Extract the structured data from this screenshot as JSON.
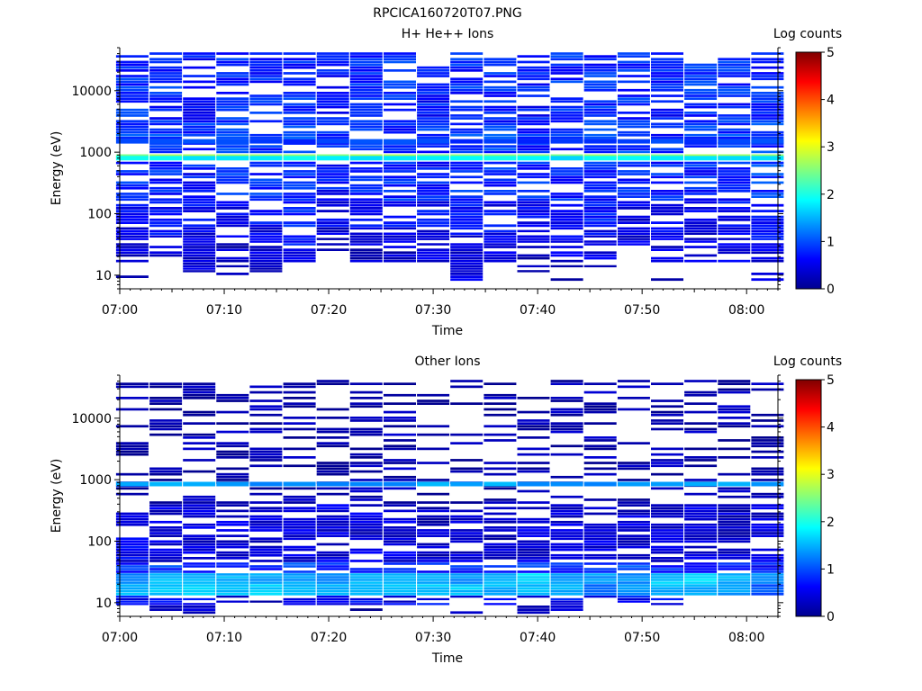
{
  "figure_title": "RPCICA160720T07.PNG",
  "palette": [
    "#00008f",
    "#0000ff",
    "#0080ff",
    "#00ffff",
    "#80ff80",
    "#ffff00",
    "#ff8000",
    "#ff0000",
    "#800000"
  ],
  "chart_data": [
    {
      "type": "heatmap",
      "title": "H+ He++ Ions",
      "xlabel": "Time",
      "ylabel": "Energy (eV)",
      "xticks": [
        "07:00",
        "07:10",
        "07:20",
        "07:30",
        "07:40",
        "07:50",
        "08:00"
      ],
      "xlim_minutes": [
        0,
        63
      ],
      "ylog": true,
      "ylim": [
        6,
        50000
      ],
      "yticks": [
        {
          "v": 10,
          "label": "10"
        },
        {
          "v": 100,
          "label": "100"
        },
        {
          "v": 1000,
          "label": "1000"
        },
        {
          "v": 10000,
          "label": "10000"
        }
      ],
      "colorbar": {
        "label": "Log counts",
        "ticks": [
          "0",
          "1",
          "2",
          "3",
          "4",
          "5"
        ],
        "range": [
          0,
          5
        ]
      },
      "time_bins_minutes": [
        1.2,
        4.4,
        7.6,
        10.8,
        14.0,
        17.2,
        20.4,
        23.6,
        26.8,
        30.0,
        33.2,
        36.4,
        39.6,
        42.8,
        46.0,
        49.2,
        52.4,
        55.6,
        58.8,
        62.0
      ],
      "energy_lines": [
        {
          "energy": 850,
          "value": 2.6
        },
        {
          "energy": 800,
          "value": 1.8
        },
        {
          "energy": 1500,
          "value": 0.9
        }
      ],
      "bands": [
        {
          "lo": 8,
          "hi": 11,
          "values": [
            0.1,
            null,
            null,
            0.1,
            null,
            null,
            null,
            null,
            null,
            0.1,
            0.5,
            null,
            0.2,
            0.1,
            null,
            null,
            0.2,
            null,
            null,
            0.6
          ]
        },
        {
          "lo": 11,
          "hi": 16,
          "values": [
            null,
            null,
            0.3,
            0.2,
            0.4,
            null,
            null,
            null,
            null,
            0.2,
            0.6,
            null,
            0.3,
            0.1,
            0.2,
            null,
            null,
            null,
            null,
            null
          ]
        },
        {
          "lo": 16,
          "hi": 30,
          "values": [
            0.4,
            0.4,
            0.3,
            0.3,
            0.4,
            0.5,
            0.2,
            0.3,
            0.3,
            0.4,
            0.4,
            0.4,
            0.3,
            0.4,
            0.5,
            null,
            0.4,
            0.4,
            0.5,
            0.5
          ]
        },
        {
          "lo": 30,
          "hi": 60,
          "values": [
            0.5,
            0.6,
            0.5,
            0.4,
            0.5,
            0.6,
            0.4,
            0.5,
            0.5,
            0.5,
            0.5,
            0.6,
            0.5,
            0.5,
            0.6,
            0.4,
            0.5,
            0.5,
            0.6,
            0.6
          ]
        },
        {
          "lo": 60,
          "hi": 160,
          "values": [
            0.6,
            0.6,
            0.6,
            0.5,
            0.6,
            0.7,
            0.5,
            0.6,
            0.6,
            0.6,
            0.6,
            0.6,
            0.6,
            0.6,
            0.7,
            0.5,
            0.6,
            0.6,
            0.6,
            0.7
          ]
        },
        {
          "lo": 160,
          "hi": 700,
          "values": [
            0.8,
            0.8,
            0.7,
            0.8,
            0.8,
            0.9,
            0.7,
            0.8,
            0.8,
            0.7,
            0.8,
            0.8,
            0.8,
            0.8,
            0.8,
            0.8,
            0.8,
            0.8,
            0.8,
            0.9
          ]
        },
        {
          "lo": 950,
          "hi": 3000,
          "values": [
            0.9,
            0.9,
            0.8,
            0.9,
            0.9,
            0.9,
            0.8,
            0.9,
            0.8,
            0.8,
            0.9,
            0.9,
            0.8,
            0.8,
            0.9,
            0.9,
            0.8,
            0.9,
            0.9,
            0.9
          ]
        },
        {
          "lo": 3000,
          "hi": 42000,
          "values": [
            0.8,
            0.8,
            0.7,
            0.8,
            0.8,
            0.8,
            0.7,
            0.8,
            0.8,
            0.7,
            0.8,
            0.8,
            0.7,
            0.8,
            0.8,
            0.8,
            0.7,
            0.8,
            0.8,
            0.8
          ]
        }
      ]
    },
    {
      "type": "heatmap",
      "title": "Other Ions",
      "xlabel": "Time",
      "ylabel": "Energy (eV)",
      "xticks": [
        "07:00",
        "07:10",
        "07:20",
        "07:30",
        "07:40",
        "07:50",
        "08:00"
      ],
      "xlim_minutes": [
        0,
        63
      ],
      "ylog": true,
      "ylim": [
        6,
        50000
      ],
      "yticks": [
        {
          "v": 10,
          "label": "10"
        },
        {
          "v": 100,
          "label": "100"
        },
        {
          "v": 1000,
          "label": "1000"
        },
        {
          "v": 10000,
          "label": "10000"
        }
      ],
      "colorbar": {
        "label": "Log counts",
        "ticks": [
          "0",
          "1",
          "2",
          "3",
          "4",
          "5"
        ],
        "range": [
          0,
          5
        ]
      },
      "time_bins_minutes": [
        1.2,
        4.4,
        7.6,
        10.8,
        14.0,
        17.2,
        20.4,
        23.6,
        26.8,
        30.0,
        33.2,
        36.4,
        39.6,
        42.8,
        46.0,
        49.2,
        52.4,
        55.6,
        58.8,
        62.0
      ],
      "energy_lines": [
        {
          "energy": 850,
          "value": 1.4
        }
      ],
      "bands": [
        {
          "lo": 6.5,
          "hi": 9,
          "values": [
            null,
            0.2,
            0.4,
            null,
            0.1,
            null,
            null,
            0.1,
            0.2,
            0.2,
            0.1,
            null,
            0.3,
            0.3,
            null,
            0.1,
            null,
            null,
            null,
            null
          ]
        },
        {
          "lo": 9,
          "hi": 13,
          "values": [
            0.6,
            0.6,
            0.6,
            0.5,
            0.2,
            0.6,
            0.5,
            0.6,
            0.5,
            0.6,
            0.5,
            0.6,
            0.5,
            0.6,
            0.5,
            0.6,
            0.6,
            null,
            null,
            null
          ]
        },
        {
          "lo": 13,
          "hi": 20,
          "values": [
            1.5,
            1.6,
            1.7,
            1.6,
            1.6,
            1.5,
            1.5,
            1.5,
            1.6,
            1.6,
            1.6,
            1.5,
            1.5,
            1.5,
            1.2,
            1.4,
            1.5,
            1.5,
            1.4,
            1.0
          ]
        },
        {
          "lo": 20,
          "hi": 30,
          "values": [
            1.3,
            1.6,
            1.5,
            1.5,
            1.4,
            1.4,
            1.3,
            1.5,
            1.5,
            1.4,
            1.3,
            1.5,
            1.7,
            1.4,
            1.4,
            1.3,
            1.6,
            1.8,
            1.5,
            1.4
          ]
        },
        {
          "lo": 30,
          "hi": 45,
          "values": [
            0.8,
            0.9,
            0.8,
            0.9,
            0.8,
            0.9,
            0.9,
            0.8,
            0.7,
            0.7,
            0.8,
            0.9,
            0.8,
            0.8,
            0.9,
            0.9,
            0.8,
            0.8,
            0.9,
            0.7
          ]
        },
        {
          "lo": 45,
          "hi": 400,
          "values": [
            0.5,
            0.4,
            0.4,
            0.4,
            0.4,
            0.4,
            0.4,
            0.4,
            0.4,
            0.3,
            0.4,
            0.3,
            0.4,
            0.4,
            0.4,
            0.4,
            0.4,
            0.4,
            0.3,
            0.4
          ]
        },
        {
          "lo": 400,
          "hi": 42000,
          "values": [
            0.15,
            0.15,
            0.15,
            0.15,
            0.15,
            0.15,
            0.15,
            0.15,
            0.15,
            0.15,
            0.15,
            0.15,
            0.15,
            0.15,
            0.15,
            0.15,
            0.15,
            0.15,
            0.15,
            0.15
          ]
        }
      ]
    }
  ]
}
